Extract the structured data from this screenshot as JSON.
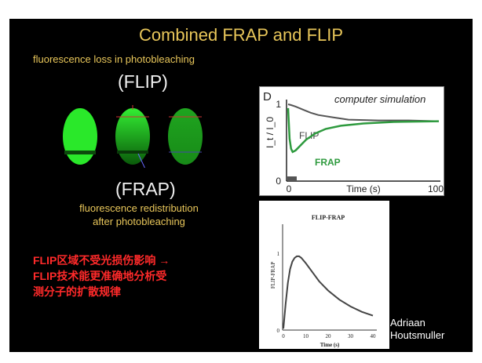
{
  "slide": {
    "title": "Combined FRAP and FLIP",
    "flip_description": "fluorescence loss in photobleaching",
    "flip_label": "(FLIP)",
    "frap_label": "(FRAP)",
    "frap_description_line1": "fluorescence redistribution",
    "frap_description_line2": "after photobleaching",
    "red_note_line1": "FLIP区域不受光损伤影响 →",
    "red_note_line2": "FLIP技术能更准确地分析受",
    "red_note_line3": "测分子的扩散规律",
    "credit_line1": "Adriaan",
    "credit_line2": "Houtsmuller",
    "colors": {
      "background": "#000000",
      "title": "#e8c65a",
      "note": "#ff2a2a",
      "cell": "#22dd22"
    }
  },
  "chart_data": [
    {
      "type": "line",
      "panel_letter": "D",
      "annotation": "computer simulation",
      "xlabel": "Time (s)",
      "ylabel": "I_t / I_0",
      "x_ticks": [
        "0",
        "100"
      ],
      "y_ticks": [
        "0",
        "1"
      ],
      "xlim": [
        0,
        100
      ],
      "ylim": [
        0,
        1
      ],
      "series": [
        {
          "name": "FLIP",
          "color": "#555555",
          "x": [
            0,
            2,
            5,
            10,
            15,
            20,
            30,
            40,
            60,
            80,
            100
          ],
          "values": [
            1.0,
            0.99,
            0.97,
            0.93,
            0.89,
            0.86,
            0.83,
            0.8,
            0.79,
            0.79,
            0.78
          ]
        },
        {
          "name": "FRAP",
          "color": "#2e9a3e",
          "x": [
            0,
            1,
            2,
            3,
            5,
            8,
            12,
            18,
            25,
            35,
            50,
            70,
            100
          ],
          "values": [
            0.95,
            0.55,
            0.42,
            0.38,
            0.4,
            0.46,
            0.54,
            0.62,
            0.68,
            0.72,
            0.75,
            0.77,
            0.78
          ]
        }
      ]
    },
    {
      "type": "line",
      "title": "FLIP-FRAP",
      "xlabel": "Time (s)",
      "ylabel": "FLIP-FRAP",
      "x_ticks": [
        "0",
        "10",
        "20",
        "30",
        "40"
      ],
      "y_ticks": [
        "0",
        "1"
      ],
      "xlim": [
        0,
        40
      ],
      "ylim": [
        0,
        1
      ],
      "series": [
        {
          "x": [
            0,
            1,
            2,
            3,
            4,
            5,
            6,
            7,
            8,
            10,
            13,
            16,
            20,
            25,
            30,
            35,
            40
          ],
          "values": [
            0.02,
            0.35,
            0.62,
            0.8,
            0.9,
            0.95,
            0.97,
            0.97,
            0.95,
            0.88,
            0.76,
            0.64,
            0.52,
            0.4,
            0.31,
            0.24,
            0.19
          ]
        }
      ]
    }
  ]
}
